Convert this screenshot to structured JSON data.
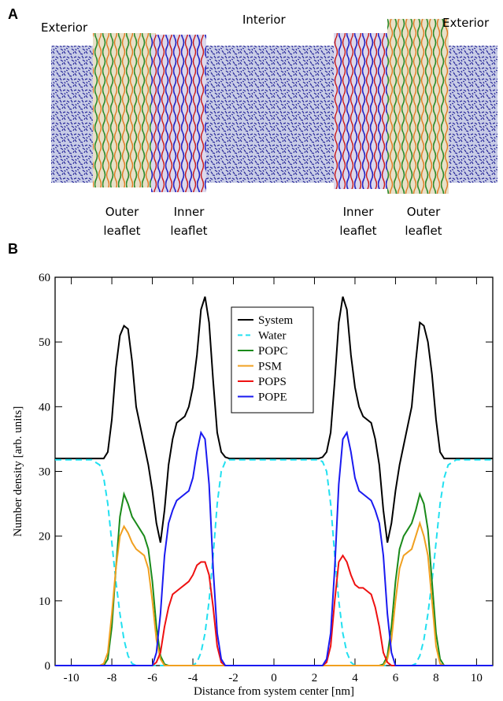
{
  "panel_a": {
    "label": "A",
    "regions": [
      "Exterior",
      "Interior",
      "Exterior"
    ],
    "leaflets": [
      [
        "Outer",
        "leaflet"
      ],
      [
        "Inner",
        "leaflet"
      ],
      [
        "Inner",
        "leaflet"
      ],
      [
        "Outer",
        "leaflet"
      ]
    ]
  },
  "chart_data": {
    "type": "line",
    "panel_label": "B",
    "xlabel": "Distance from system center [nm]",
    "ylabel": "Number density [arb. units]",
    "xlim": [
      -10.8,
      10.8
    ],
    "xticks": [
      -10,
      -8,
      -6,
      -4,
      -2,
      0,
      2,
      4,
      6,
      8,
      10
    ],
    "ylim": [
      0,
      60
    ],
    "yticks": [
      0,
      10,
      20,
      30,
      40,
      50,
      60
    ],
    "legend": "upper-center",
    "x": [
      -10.8,
      -9,
      -8.6,
      -8.4,
      -8.2,
      -8,
      -7.8,
      -7.6,
      -7.4,
      -7.2,
      -7,
      -6.8,
      -6.6,
      -6.4,
      -6.2,
      -6,
      -5.8,
      -5.6,
      -5.4,
      -5.2,
      -5,
      -4.8,
      -4.6,
      -4.4,
      -4.2,
      -4,
      -3.8,
      -3.6,
      -3.4,
      -3.2,
      -3,
      -2.8,
      -2.6,
      -2.4,
      -2.2,
      -2,
      0,
      2,
      2.2,
      2.4,
      2.6,
      2.8,
      3,
      3.2,
      3.4,
      3.6,
      3.8,
      4,
      4.2,
      4.4,
      4.6,
      4.8,
      5,
      5.2,
      5.4,
      5.6,
      5.8,
      6,
      6.2,
      6.4,
      6.6,
      6.8,
      7,
      7.2,
      7.4,
      7.6,
      7.8,
      8,
      8.2,
      8.4,
      8.6,
      9,
      10.8
    ],
    "series": [
      {
        "name": "System",
        "color": "#000000",
        "style": "solid",
        "values": [
          32,
          32,
          32,
          32,
          33,
          38,
          46,
          51,
          52.5,
          52,
          47,
          40,
          37,
          34,
          31,
          27,
          22,
          19,
          24,
          31,
          35,
          37.5,
          38,
          38.5,
          40,
          43,
          48,
          55,
          57,
          53,
          44,
          36,
          33,
          32.2,
          32,
          32,
          32,
          32,
          32,
          32.2,
          33,
          36,
          44,
          53,
          57,
          55,
          48,
          43,
          40,
          38.5,
          38,
          37.5,
          35,
          31,
          24,
          19,
          22,
          27,
          31,
          34,
          37,
          40,
          47,
          53,
          52.5,
          50,
          45,
          38,
          33,
          32,
          32,
          32,
          32
        ]
      },
      {
        "name": "Water",
        "color": "#22e0f0",
        "style": "dashed",
        "values": [
          31.8,
          31.8,
          31,
          29,
          25,
          19,
          13,
          8,
          4,
          1.5,
          0.3,
          0,
          0,
          0,
          0,
          0,
          0,
          0,
          0,
          0,
          0,
          0,
          0,
          0,
          0,
          0,
          0.5,
          2,
          5,
          10,
          17,
          25,
          30,
          31.5,
          31.8,
          31.8,
          31.8,
          31.8,
          31.8,
          31.5,
          30,
          25,
          17,
          10,
          5,
          2,
          0.5,
          0,
          0,
          0,
          0,
          0,
          0,
          0,
          0,
          0,
          0,
          0,
          0,
          0,
          0,
          0,
          0.3,
          1.5,
          4,
          8,
          13,
          19,
          25,
          29,
          31,
          31.8,
          31.8
        ]
      },
      {
        "name": "POPC",
        "color": "#1a8a1a",
        "style": "solid",
        "values": [
          0,
          0,
          0,
          0,
          1,
          6,
          15,
          23,
          26.5,
          25,
          23,
          22,
          21,
          20,
          18,
          13,
          6,
          1.5,
          0.2,
          0,
          0,
          0,
          0,
          0,
          0,
          0,
          0,
          0,
          0,
          0,
          0,
          0,
          0,
          0,
          0,
          0,
          0,
          0,
          0,
          0,
          0,
          0,
          0,
          0,
          0,
          0,
          0,
          0,
          0,
          0,
          0,
          0,
          0,
          0,
          0.2,
          1.5,
          6,
          13,
          18,
          20,
          21,
          22,
          24,
          26.5,
          25,
          21,
          13,
          5,
          1,
          0,
          0,
          0,
          0
        ]
      },
      {
        "name": "PSM",
        "color": "#f0a020",
        "style": "solid",
        "values": [
          0,
          0,
          0,
          0.3,
          2,
          8,
          15,
          20,
          21.5,
          20.5,
          19,
          18,
          17.5,
          17,
          15,
          10,
          4,
          1,
          0,
          0,
          0,
          0,
          0,
          0,
          0,
          0,
          0,
          0,
          0,
          0,
          0,
          0,
          0,
          0,
          0,
          0,
          0,
          0,
          0,
          0,
          0,
          0,
          0,
          0,
          0,
          0,
          0,
          0,
          0,
          0,
          0,
          0,
          0,
          0,
          0,
          1,
          4,
          10,
          15,
          17,
          17.5,
          18,
          20,
          22,
          20,
          17,
          10,
          3,
          0.3,
          0,
          0,
          0,
          0
        ]
      },
      {
        "name": "POPS",
        "color": "#ee1111",
        "style": "solid",
        "values": [
          0,
          0,
          0,
          0,
          0,
          0,
          0,
          0,
          0,
          0,
          0,
          0,
          0,
          0,
          0,
          0,
          0.5,
          2,
          6,
          9,
          11,
          11.5,
          12,
          12.5,
          13,
          14,
          15.5,
          16,
          16,
          14,
          9,
          3,
          0.5,
          0,
          0,
          0,
          0,
          0,
          0,
          0,
          0.5,
          3,
          10,
          16,
          17,
          16,
          14,
          12.5,
          12,
          12,
          11.5,
          11,
          9,
          6,
          2,
          0.5,
          0,
          0,
          0,
          0,
          0,
          0,
          0,
          0,
          0,
          0,
          0,
          0,
          0,
          0,
          0,
          0,
          0
        ]
      },
      {
        "name": "POPE",
        "color": "#1a1af0",
        "style": "solid",
        "values": [
          0,
          0,
          0,
          0,
          0,
          0,
          0,
          0,
          0,
          0,
          0,
          0,
          0,
          0,
          0,
          0,
          2,
          8,
          17,
          22,
          24,
          25.5,
          26,
          26.5,
          27,
          29,
          33,
          36,
          35,
          28,
          15,
          5,
          1,
          0,
          0,
          0,
          0,
          0,
          0,
          0,
          1,
          5,
          15,
          28,
          35,
          36,
          33,
          29,
          27,
          26.5,
          26,
          25.5,
          24,
          22,
          17,
          8,
          2,
          0,
          0,
          0,
          0,
          0,
          0,
          0,
          0,
          0,
          0,
          0,
          0,
          0,
          0,
          0,
          0
        ]
      }
    ]
  }
}
